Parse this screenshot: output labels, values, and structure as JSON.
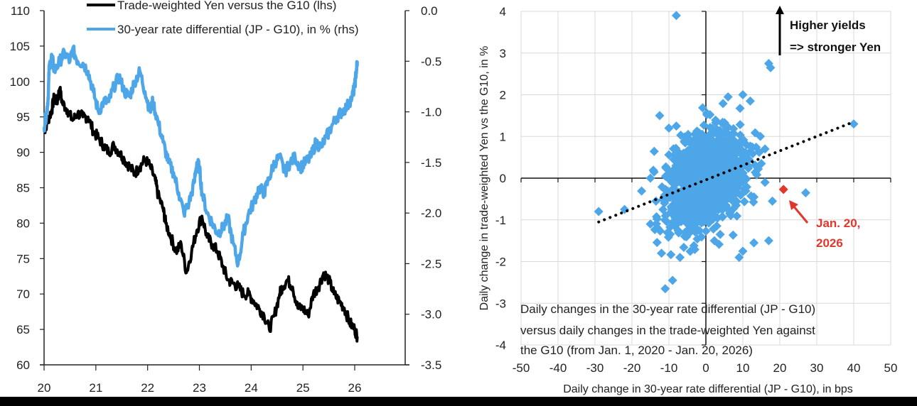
{
  "chart_data": [
    {
      "type": "line",
      "title": "",
      "legend": {
        "placement": "top",
        "entries": [
          {
            "name": "Trade-weighted Yen versus the G10 (lhs)",
            "color": "#000000"
          },
          {
            "name": "30-year rate differential (JP - G10), in % (rhs)",
            "color": "#4da6e8"
          }
        ]
      },
      "x": {
        "label": "",
        "ticks": [
          "20",
          "21",
          "22",
          "23",
          "24",
          "25",
          "26"
        ],
        "range": [
          20,
          26.85
        ]
      },
      "y_left": {
        "label": "",
        "ticks": [
          "60",
          "65",
          "70",
          "75",
          "80",
          "85",
          "90",
          "95",
          "100",
          "105",
          "110"
        ],
        "range": [
          60,
          110
        ]
      },
      "y_right": {
        "label": "",
        "ticks": [
          "-3.5",
          "-3.0",
          "-2.5",
          "-2.0",
          "-1.5",
          "-1.0",
          "-0.5",
          "0.0"
        ],
        "range": [
          -3.5,
          0.0
        ]
      },
      "grid": false,
      "series": [
        {
          "name": "Trade-weighted Yen versus the G10 (lhs)",
          "axis": "left",
          "color": "#000000",
          "points": [
            [
              20.0,
              93
            ],
            [
              20.05,
              94
            ],
            [
              20.1,
              95
            ],
            [
              20.15,
              96
            ],
            [
              20.2,
              98
            ],
            [
              20.25,
              97
            ],
            [
              20.3,
              99
            ],
            [
              20.35,
              97
            ],
            [
              20.45,
              96
            ],
            [
              20.55,
              94.5
            ],
            [
              20.65,
              95.5
            ],
            [
              20.75,
              95
            ],
            [
              20.85,
              95
            ],
            [
              20.95,
              93
            ],
            [
              21.05,
              92
            ],
            [
              21.15,
              91
            ],
            [
              21.25,
              90
            ],
            [
              21.35,
              91
            ],
            [
              21.45,
              90
            ],
            [
              21.55,
              89
            ],
            [
              21.65,
              88
            ],
            [
              21.75,
              87
            ],
            [
              21.85,
              88
            ],
            [
              21.95,
              89
            ],
            [
              22.05,
              88
            ],
            [
              22.15,
              86
            ],
            [
              22.2,
              84
            ],
            [
              22.3,
              82
            ],
            [
              22.35,
              80
            ],
            [
              22.45,
              78
            ],
            [
              22.55,
              76
            ],
            [
              22.65,
              77
            ],
            [
              22.75,
              73
            ],
            [
              22.85,
              76
            ],
            [
              22.95,
              79
            ],
            [
              23.05,
              81
            ],
            [
              23.15,
              78
            ],
            [
              23.25,
              77
            ],
            [
              23.35,
              76
            ],
            [
              23.45,
              74
            ],
            [
              23.55,
              72
            ],
            [
              23.65,
              71.5
            ],
            [
              23.75,
              71
            ],
            [
              23.85,
              70
            ],
            [
              23.95,
              70
            ],
            [
              24.05,
              69
            ],
            [
              24.15,
              68
            ],
            [
              24.25,
              67
            ],
            [
              24.35,
              65
            ],
            [
              24.45,
              67
            ],
            [
              24.55,
              70
            ],
            [
              24.6,
              71
            ],
            [
              24.7,
              72
            ],
            [
              24.8,
              71
            ],
            [
              24.9,
              68
            ],
            [
              25.0,
              68
            ],
            [
              25.1,
              67
            ],
            [
              25.2,
              70
            ],
            [
              25.3,
              71
            ],
            [
              25.4,
              73
            ],
            [
              25.5,
              72
            ],
            [
              25.6,
              70
            ],
            [
              25.7,
              69
            ],
            [
              25.8,
              68
            ],
            [
              25.9,
              66
            ],
            [
              26.0,
              65
            ],
            [
              26.05,
              64
            ]
          ]
        },
        {
          "name": "30-year rate differential (JP - G10), in % (rhs)",
          "axis": "right",
          "color": "#4da6e8",
          "points": [
            [
              20.0,
              -1.15
            ],
            [
              20.05,
              -1.0
            ],
            [
              20.08,
              -0.85
            ],
            [
              20.1,
              -0.55
            ],
            [
              20.15,
              -0.45
            ],
            [
              20.2,
              -0.6
            ],
            [
              20.3,
              -0.5
            ],
            [
              20.4,
              -0.42
            ],
            [
              20.5,
              -0.5
            ],
            [
              20.55,
              -0.38
            ],
            [
              20.65,
              -0.5
            ],
            [
              20.75,
              -0.52
            ],
            [
              20.85,
              -0.6
            ],
            [
              20.95,
              -0.8
            ],
            [
              21.05,
              -1.0
            ],
            [
              21.15,
              -0.9
            ],
            [
              21.25,
              -0.9
            ],
            [
              21.35,
              -0.75
            ],
            [
              21.45,
              -0.65
            ],
            [
              21.55,
              -0.8
            ],
            [
              21.65,
              -0.85
            ],
            [
              21.75,
              -0.7
            ],
            [
              21.85,
              -0.6
            ],
            [
              21.95,
              -0.8
            ],
            [
              22.05,
              -1.0
            ],
            [
              22.1,
              -0.9
            ],
            [
              22.2,
              -1.1
            ],
            [
              22.3,
              -1.3
            ],
            [
              22.4,
              -1.5
            ],
            [
              22.5,
              -1.6
            ],
            [
              22.6,
              -1.8
            ],
            [
              22.7,
              -2.0
            ],
            [
              22.8,
              -1.9
            ],
            [
              22.9,
              -1.7
            ],
            [
              22.95,
              -1.5
            ],
            [
              23.0,
              -1.55
            ],
            [
              23.05,
              -1.8
            ],
            [
              23.15,
              -2.0
            ],
            [
              23.25,
              -2.1
            ],
            [
              23.35,
              -2.2
            ],
            [
              23.45,
              -2.15
            ],
            [
              23.55,
              -2.05
            ],
            [
              23.65,
              -2.3
            ],
            [
              23.75,
              -2.5
            ],
            [
              23.85,
              -2.2
            ],
            [
              23.95,
              -2.0
            ],
            [
              24.05,
              -1.9
            ],
            [
              24.15,
              -1.75
            ],
            [
              24.25,
              -1.8
            ],
            [
              24.35,
              -1.65
            ],
            [
              24.45,
              -1.5
            ],
            [
              24.55,
              -1.45
            ],
            [
              24.65,
              -1.6
            ],
            [
              24.75,
              -1.5
            ],
            [
              24.85,
              -1.45
            ],
            [
              24.95,
              -1.55
            ],
            [
              25.05,
              -1.5
            ],
            [
              25.15,
              -1.45
            ],
            [
              25.25,
              -1.3
            ],
            [
              25.35,
              -1.35
            ],
            [
              25.45,
              -1.25
            ],
            [
              25.55,
              -1.15
            ],
            [
              25.65,
              -1.05
            ],
            [
              25.75,
              -1.0
            ],
            [
              25.85,
              -0.95
            ],
            [
              25.95,
              -0.85
            ],
            [
              26.0,
              -0.75
            ],
            [
              26.03,
              -0.6
            ],
            [
              26.05,
              -0.5
            ]
          ]
        }
      ]
    },
    {
      "type": "scatter",
      "title": "",
      "xlabel": "Daily change in 30-year rate differential (JP - G10), in bps",
      "ylabel": "Daily change in trade-weighted Yen vs the G10, in %",
      "x": {
        "ticks": [
          "-50",
          "-40",
          "-30",
          "-20",
          "-10",
          "0",
          "10",
          "20",
          "30",
          "40",
          "50"
        ],
        "range": [
          -50,
          50
        ]
      },
      "y": {
        "ticks": [
          "-4",
          "-3",
          "-2",
          "-1",
          "0",
          "1",
          "2",
          "3",
          "4"
        ],
        "range": [
          -4,
          4
        ]
      },
      "grid": true,
      "marker_color": "#4da6e8",
      "highlight": {
        "label": "Jan. 20, 2026",
        "x": 21,
        "y": -0.27,
        "color": "#e0362c"
      },
      "trendline": {
        "style": "dotted",
        "color": "#000000",
        "from": [
          -29,
          -1.05
        ],
        "to": [
          40,
          1.35
        ]
      },
      "outliers": [
        [
          -8,
          3.9
        ],
        [
          40,
          1.3
        ],
        [
          17,
          2.75
        ],
        [
          17.5,
          2.65
        ],
        [
          -12.5,
          1.5
        ],
        [
          -10,
          1.2
        ],
        [
          -8,
          1.25
        ],
        [
          -14,
          0.15
        ],
        [
          -15,
          0.0
        ],
        [
          -29,
          -0.8
        ],
        [
          -22,
          -0.75
        ],
        [
          -15,
          -1.1
        ],
        [
          -13,
          -1.2
        ],
        [
          -12,
          -1.8
        ],
        [
          -7,
          -1.9
        ],
        [
          -11,
          -2.65
        ],
        [
          -9,
          -2.45
        ],
        [
          9,
          -1.9
        ],
        [
          10,
          -1.75
        ],
        [
          13,
          -1.55
        ],
        [
          17,
          -1.5
        ],
        [
          18,
          -0.55
        ],
        [
          13,
          -0.45
        ],
        [
          27,
          -0.35
        ],
        [
          16,
          -0.1
        ],
        [
          15,
          0.35
        ],
        [
          16,
          0.7
        ],
        [
          10,
          2.0
        ],
        [
          12,
          1.85
        ],
        [
          6,
          1.95
        ]
      ],
      "cluster": {
        "center": [
          0,
          0
        ],
        "sd_x": 5,
        "sd_y": 0.55,
        "correlation": 0.35,
        "count": 1500
      },
      "annotations": {
        "arrow_text_line1": "Higher yields",
        "arrow_text_line2": "=> stronger Yen",
        "highlight_text_line1": "Jan. 20,",
        "highlight_text_line2": "2026",
        "note_line1": "Daily changes in the 30-year rate differential (JP - G10)",
        "note_line2": "versus daily changes in the trade-weighted Yen against",
        "note_line3": "the G10 (from Jan. 1, 2020 - Jan. 20, 2026)"
      }
    }
  ]
}
